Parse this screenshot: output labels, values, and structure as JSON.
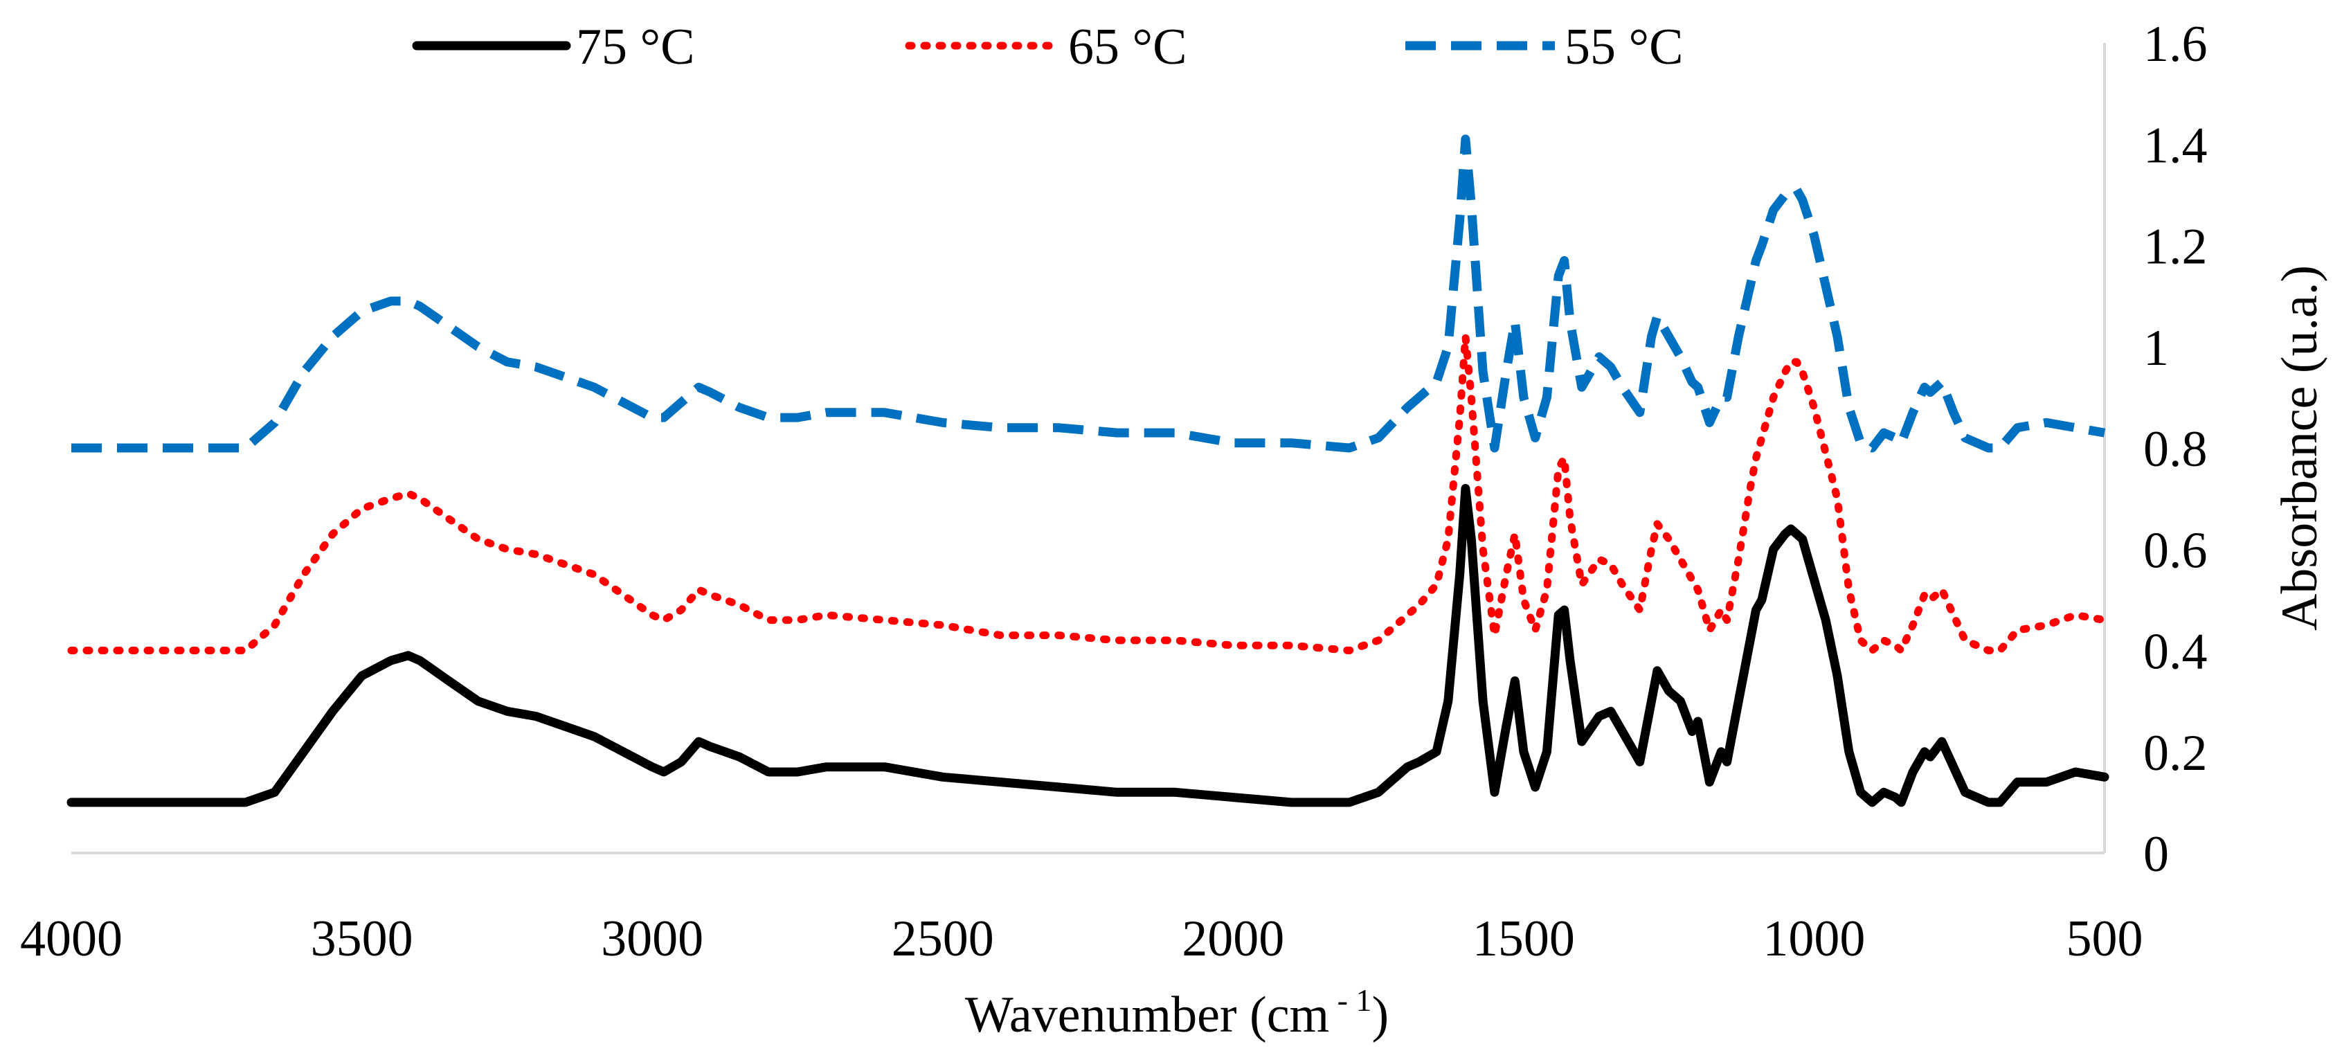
{
  "chart_data": {
    "type": "line",
    "title": "",
    "xlabel": "Wavenumber (cm",
    "xlabel_sup": " - 1",
    "xlabel_close": ")",
    "ylabel": "Absorbance (u.a.)",
    "xlim": [
      4000,
      500
    ],
    "ylim": [
      0,
      1.6
    ],
    "x_reversed": true,
    "y_axis_side": "right",
    "grid": false,
    "legend_position": "top",
    "x_ticks": [
      4000,
      3500,
      3000,
      2500,
      2000,
      1500,
      1000,
      500
    ],
    "x_tick_labels": [
      "4000",
      "3500",
      "3000",
      "2500",
      "2000",
      "1500",
      "1000",
      "500"
    ],
    "y_ticks": [
      0,
      0.2,
      0.4,
      0.6,
      0.8,
      1,
      1.2,
      1.4,
      1.6
    ],
    "y_tick_labels": [
      "0",
      "0.2",
      "0.4",
      "0.6",
      "0.8",
      "1",
      "1.2",
      "1.4",
      "1.6"
    ],
    "series": [
      {
        "name": "75 °C",
        "color": "#000000",
        "line_style": "solid",
        "x": [
          4000,
          3800,
          3700,
          3650,
          3600,
          3550,
          3500,
          3450,
          3420,
          3400,
          3350,
          3300,
          3250,
          3200,
          3150,
          3100,
          3050,
          3000,
          2980,
          2950,
          2920,
          2900,
          2850,
          2800,
          2750,
          2700,
          2600,
          2500,
          2400,
          2300,
          2200,
          2100,
          2000,
          1900,
          1800,
          1750,
          1700,
          1680,
          1650,
          1630,
          1610,
          1600,
          1590,
          1570,
          1550,
          1530,
          1515,
          1500,
          1480,
          1460,
          1440,
          1430,
          1420,
          1400,
          1370,
          1350,
          1330,
          1300,
          1280,
          1270,
          1250,
          1230,
          1210,
          1200,
          1180,
          1160,
          1150,
          1130,
          1110,
          1100,
          1090,
          1070,
          1050,
          1040,
          1030,
          1020,
          1000,
          980,
          960,
          940,
          920,
          900,
          880,
          860,
          850,
          830,
          810,
          800,
          780,
          760,
          740,
          720,
          700,
          680,
          650,
          600,
          550,
          500
        ],
        "y": [
          0.1,
          0.1,
          0.1,
          0.12,
          0.2,
          0.28,
          0.35,
          0.38,
          0.39,
          0.38,
          0.34,
          0.3,
          0.28,
          0.27,
          0.25,
          0.23,
          0.2,
          0.17,
          0.16,
          0.18,
          0.22,
          0.21,
          0.19,
          0.16,
          0.16,
          0.17,
          0.17,
          0.15,
          0.14,
          0.13,
          0.12,
          0.12,
          0.11,
          0.1,
          0.1,
          0.12,
          0.17,
          0.18,
          0.2,
          0.3,
          0.55,
          0.72,
          0.62,
          0.3,
          0.12,
          0.25,
          0.34,
          0.2,
          0.13,
          0.2,
          0.47,
          0.48,
          0.38,
          0.22,
          0.27,
          0.28,
          0.24,
          0.18,
          0.3,
          0.36,
          0.32,
          0.3,
          0.24,
          0.26,
          0.14,
          0.2,
          0.18,
          0.3,
          0.42,
          0.48,
          0.5,
          0.6,
          0.63,
          0.64,
          0.63,
          0.62,
          0.54,
          0.46,
          0.35,
          0.2,
          0.12,
          0.1,
          0.12,
          0.11,
          0.1,
          0.16,
          0.2,
          0.19,
          0.22,
          0.17,
          0.12,
          0.11,
          0.1,
          0.1,
          0.14,
          0.14,
          0.16,
          0.15
        ]
      },
      {
        "name": "65 °C",
        "color": "#ff0000",
        "line_style": "dotted",
        "x": [
          4000,
          3800,
          3700,
          3650,
          3600,
          3550,
          3500,
          3450,
          3420,
          3400,
          3350,
          3300,
          3250,
          3200,
          3150,
          3100,
          3050,
          3000,
          2980,
          2950,
          2920,
          2900,
          2850,
          2800,
          2750,
          2700,
          2600,
          2500,
          2400,
          2300,
          2200,
          2100,
          2000,
          1900,
          1800,
          1750,
          1700,
          1680,
          1650,
          1630,
          1610,
          1600,
          1590,
          1570,
          1550,
          1530,
          1515,
          1500,
          1480,
          1460,
          1440,
          1430,
          1420,
          1400,
          1370,
          1350,
          1330,
          1300,
          1280,
          1270,
          1250,
          1230,
          1210,
          1200,
          1180,
          1160,
          1150,
          1130,
          1110,
          1100,
          1090,
          1070,
          1050,
          1040,
          1030,
          1020,
          1000,
          980,
          960,
          940,
          920,
          900,
          880,
          860,
          850,
          830,
          810,
          800,
          780,
          760,
          740,
          720,
          700,
          680,
          650,
          600,
          550,
          500
        ],
        "y": [
          0.4,
          0.4,
          0.4,
          0.45,
          0.55,
          0.63,
          0.68,
          0.7,
          0.71,
          0.7,
          0.66,
          0.62,
          0.6,
          0.59,
          0.57,
          0.55,
          0.51,
          0.47,
          0.46,
          0.48,
          0.52,
          0.51,
          0.49,
          0.46,
          0.46,
          0.47,
          0.46,
          0.45,
          0.43,
          0.43,
          0.42,
          0.42,
          0.41,
          0.41,
          0.4,
          0.42,
          0.47,
          0.49,
          0.53,
          0.62,
          0.86,
          1.02,
          0.9,
          0.6,
          0.43,
          0.55,
          0.63,
          0.5,
          0.44,
          0.52,
          0.76,
          0.78,
          0.66,
          0.53,
          0.58,
          0.57,
          0.53,
          0.48,
          0.6,
          0.65,
          0.62,
          0.58,
          0.54,
          0.52,
          0.44,
          0.48,
          0.46,
          0.58,
          0.72,
          0.78,
          0.82,
          0.9,
          0.95,
          0.97,
          0.97,
          0.95,
          0.88,
          0.79,
          0.7,
          0.52,
          0.42,
          0.4,
          0.42,
          0.41,
          0.4,
          0.45,
          0.51,
          0.5,
          0.52,
          0.47,
          0.42,
          0.41,
          0.4,
          0.4,
          0.44,
          0.45,
          0.47,
          0.46
        ]
      },
      {
        "name": "55 °C",
        "color": "#0070c0",
        "line_style": "dashed",
        "x": [
          4000,
          3800,
          3700,
          3650,
          3600,
          3550,
          3500,
          3450,
          3420,
          3400,
          3350,
          3300,
          3250,
          3200,
          3150,
          3100,
          3050,
          3000,
          2980,
          2950,
          2920,
          2900,
          2850,
          2800,
          2750,
          2700,
          2600,
          2500,
          2400,
          2300,
          2200,
          2100,
          2000,
          1900,
          1800,
          1750,
          1700,
          1680,
          1650,
          1630,
          1610,
          1600,
          1590,
          1570,
          1550,
          1530,
          1515,
          1500,
          1480,
          1460,
          1440,
          1430,
          1420,
          1400,
          1370,
          1350,
          1330,
          1300,
          1280,
          1270,
          1250,
          1230,
          1210,
          1200,
          1180,
          1160,
          1150,
          1130,
          1110,
          1100,
          1090,
          1070,
          1050,
          1040,
          1030,
          1020,
          1000,
          980,
          960,
          940,
          920,
          900,
          880,
          860,
          850,
          830,
          810,
          800,
          780,
          760,
          740,
          720,
          700,
          680,
          650,
          600,
          550,
          500
        ],
        "y": [
          0.8,
          0.8,
          0.8,
          0.85,
          0.95,
          1.02,
          1.07,
          1.09,
          1.09,
          1.08,
          1.04,
          1.0,
          0.97,
          0.96,
          0.94,
          0.92,
          0.89,
          0.86,
          0.86,
          0.89,
          0.92,
          0.91,
          0.88,
          0.86,
          0.86,
          0.87,
          0.87,
          0.85,
          0.84,
          0.84,
          0.83,
          0.83,
          0.81,
          0.81,
          0.8,
          0.82,
          0.88,
          0.9,
          0.93,
          1.0,
          1.25,
          1.41,
          1.28,
          0.95,
          0.8,
          0.95,
          1.05,
          0.9,
          0.82,
          0.9,
          1.14,
          1.17,
          1.05,
          0.92,
          0.98,
          0.96,
          0.92,
          0.87,
          1.02,
          1.06,
          1.02,
          0.98,
          0.93,
          0.92,
          0.85,
          0.9,
          0.9,
          1.02,
          1.12,
          1.17,
          1.2,
          1.27,
          1.3,
          1.31,
          1.31,
          1.29,
          1.22,
          1.12,
          1.02,
          0.88,
          0.81,
          0.8,
          0.83,
          0.82,
          0.81,
          0.87,
          0.92,
          0.91,
          0.93,
          0.87,
          0.82,
          0.81,
          0.8,
          0.8,
          0.84,
          0.85,
          0.84,
          0.83
        ]
      }
    ]
  }
}
